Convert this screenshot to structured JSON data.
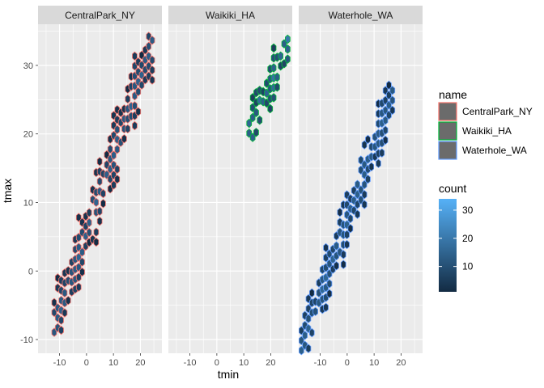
{
  "chart_data": {
    "type": "hexbin",
    "xlabel": "tmin",
    "ylabel": "tmax",
    "xlim": [
      -18,
      28
    ],
    "ylim": [
      -12,
      36
    ],
    "x_ticks": [
      -10,
      0,
      10,
      20
    ],
    "y_ticks": [
      -10,
      0,
      10,
      20,
      30
    ],
    "x_tick_labels": [
      "-10",
      "0",
      "10",
      "20"
    ],
    "y_tick_labels": [
      "-10",
      "0",
      "10",
      "20",
      "30"
    ],
    "panels": [
      {
        "label": "CentralPark_NY",
        "color": "#F8766D",
        "x_range": [
          -12,
          25
        ],
        "y_range": [
          -8,
          34
        ],
        "thickness": 5.5
      },
      {
        "label": "Waikiki_HA",
        "color": "#00BA38",
        "x_range": [
          12,
          27
        ],
        "y_range": [
          20,
          34
        ],
        "thickness": 4,
        "brightness": 0.25
      },
      {
        "label": "Waterhole_WA",
        "color": "#619CFF",
        "x_range": [
          -17,
          18
        ],
        "y_range": [
          -11,
          27
        ],
        "thickness": 5
      }
    ],
    "legend_name": {
      "title": "name",
      "entries": [
        {
          "label": "CentralPark_NY",
          "color": "#F8766D"
        },
        {
          "label": "Waikiki_HA",
          "color": "#00BA38"
        },
        {
          "label": "Waterhole_WA",
          "color": "#619CFF"
        }
      ]
    },
    "legend_count": {
      "title": "count",
      "ticks": [
        10,
        20,
        30
      ],
      "tick_labels": [
        "10",
        "20",
        "30"
      ],
      "range": [
        1,
        34
      ],
      "low_color": "#132B43",
      "high_color": "#56B1F7"
    },
    "grid": true,
    "legend_position": "right"
  }
}
